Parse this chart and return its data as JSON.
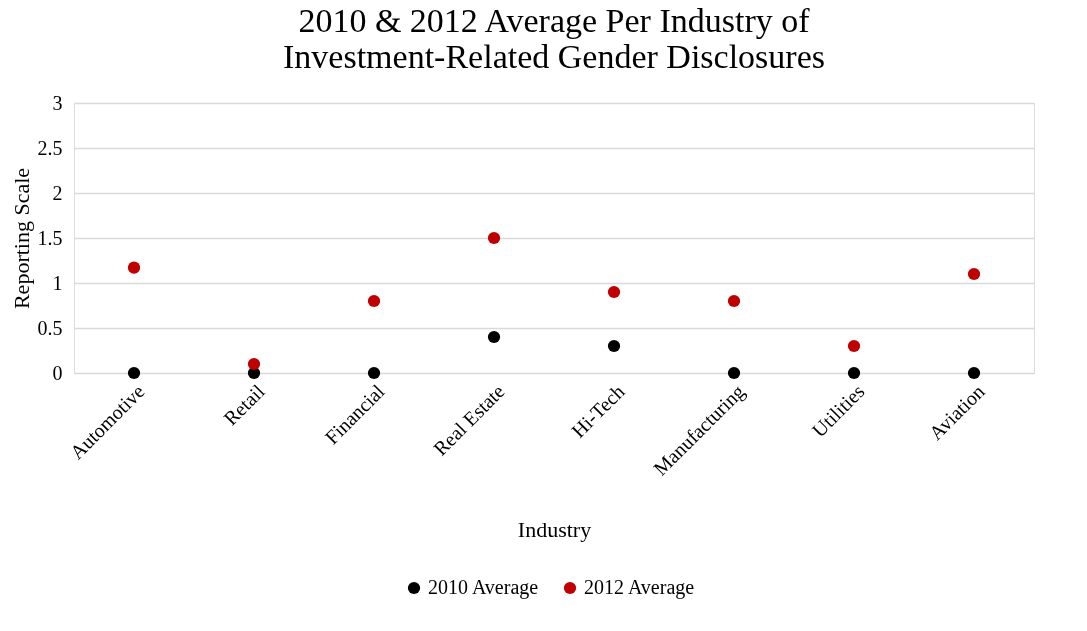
{
  "chart_data": {
    "type": "scatter",
    "title": "2010 & 2012 Average Per Industry of\nInvestment-Related Gender Disclosures",
    "xlabel": "Industry",
    "ylabel": "Reporting Scale",
    "categories": [
      "Automotive",
      "Retail",
      "Financial",
      "Real Estate",
      "Hi-Tech",
      "Manufacturing",
      "Utilities",
      "Aviation"
    ],
    "series": [
      {
        "name": "2010 Average",
        "color": "#000000",
        "values": [
          0,
          0,
          0,
          0.4,
          0.3,
          0,
          0,
          0
        ]
      },
      {
        "name": "2012 Average",
        "color": "#c00000",
        "values": [
          1.17,
          0.1,
          0.8,
          1.5,
          0.9,
          0.8,
          0.3,
          1.1
        ]
      }
    ],
    "ylim": [
      0,
      3
    ],
    "yticks": [
      0,
      0.5,
      1,
      1.5,
      2,
      2.5,
      3
    ],
    "grid": "y",
    "legend": "bottom",
    "marker": "circle"
  }
}
